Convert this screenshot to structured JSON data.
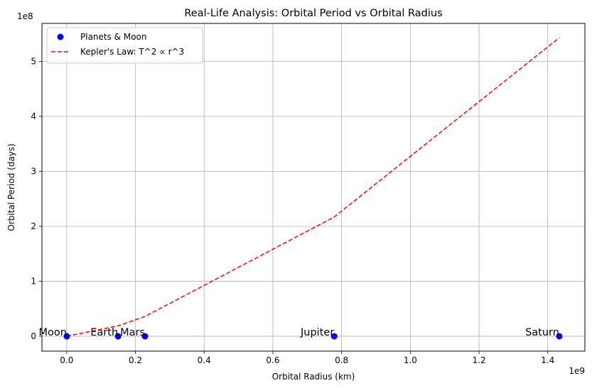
{
  "chart_data": {
    "type": "scatter",
    "title": "Real-Life Analysis: Orbital Period vs Orbital Radius",
    "xlabel": "Orbital Radius (km)",
    "ylabel": "Orbital Period (days)",
    "x_offset_label": "1e9",
    "y_offset_label": "1e8",
    "xlim": [
      -0.072,
      1.508
    ],
    "ylim": [
      -0.27,
      5.69
    ],
    "x_ticks": [
      0.0,
      0.2,
      0.4,
      0.6,
      0.8,
      1.0,
      1.2,
      1.4
    ],
    "x_tick_labels": [
      "0.0",
      "0.2",
      "0.4",
      "0.6",
      "0.8",
      "1.0",
      "1.2",
      "1.4"
    ],
    "y_ticks": [
      0,
      1,
      2,
      3,
      4,
      5
    ],
    "y_tick_labels": [
      "0",
      "1",
      "2",
      "3",
      "4",
      "5"
    ],
    "grid": true,
    "legend_position": "top-left",
    "series": [
      {
        "name": "Planets & Moon",
        "kind": "scatter",
        "color": "#0000ff",
        "points": [
          {
            "label": "Moon",
            "x": 0.000384,
            "y": 0.0
          },
          {
            "label": "Earth",
            "x": 0.1496,
            "y": 0.0
          },
          {
            "label": "Mars",
            "x": 0.2279,
            "y": 0.0
          },
          {
            "label": "Jupiter",
            "x": 0.7786,
            "y": 0.0
          },
          {
            "label": "Saturn",
            "x": 1.4335,
            "y": 0.0
          }
        ]
      },
      {
        "name": "Kepler's Law: T^2 ∝ r^3",
        "kind": "line",
        "style": "dashed",
        "color": "#ff0000",
        "x": [
          0.000384,
          0.1496,
          0.2279,
          0.7786,
          1.4335
        ],
        "y": [
          0.0,
          0.19,
          0.36,
          2.17,
          5.43
        ]
      }
    ]
  }
}
